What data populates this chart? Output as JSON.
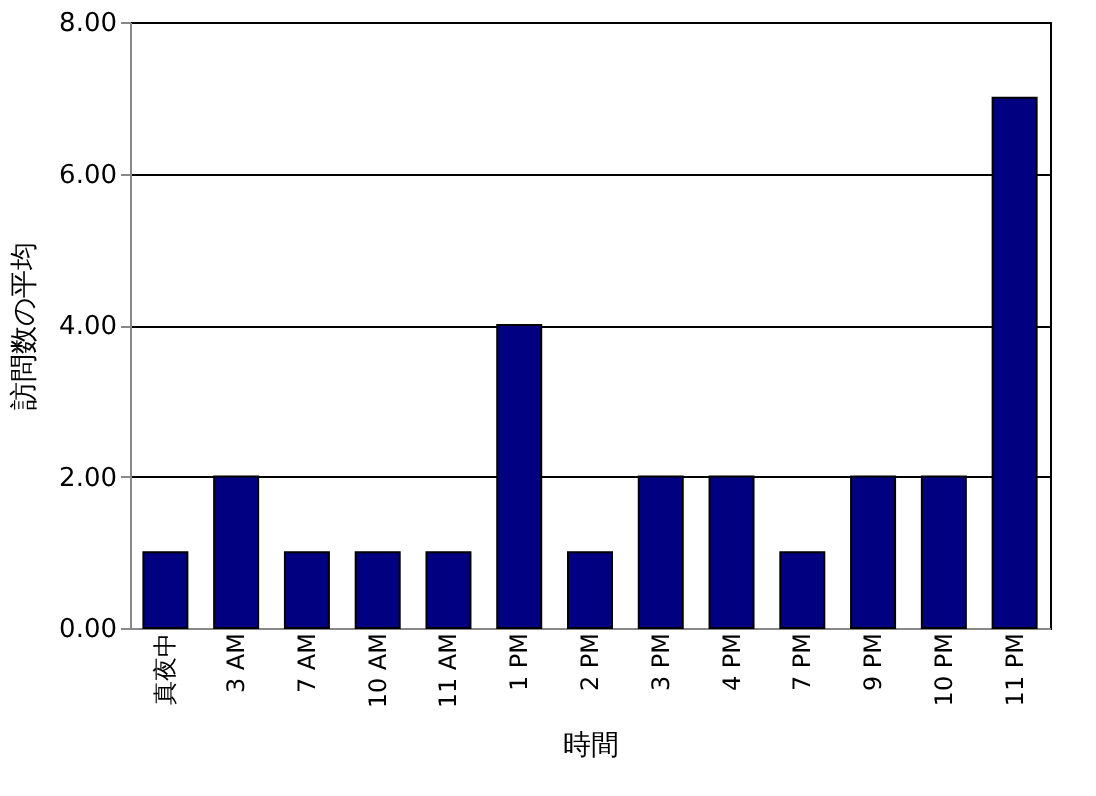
{
  "chart_data": {
    "type": "bar",
    "xlabel": "時間",
    "ylabel": "訪問数の平均",
    "categories": [
      "真夜中",
      "3 AM",
      "7 AM",
      "10 AM",
      "11 AM",
      "1 PM",
      "2 PM",
      "3 PM",
      "4 PM",
      "7 PM",
      "9 PM",
      "10 PM",
      "11 PM"
    ],
    "values": [
      1,
      2,
      1,
      1,
      1,
      4,
      1,
      2,
      2,
      1,
      2,
      2,
      7
    ],
    "color": "#000080",
    "ylim": [
      0,
      8
    ],
    "yticks": [
      {
        "value": 0,
        "label": "0.00"
      },
      {
        "value": 2,
        "label": "2.00"
      },
      {
        "value": 4,
        "label": "4.00"
      },
      {
        "value": 6,
        "label": "6.00"
      },
      {
        "value": 8,
        "label": "8.00"
      }
    ],
    "grid": "y"
  }
}
